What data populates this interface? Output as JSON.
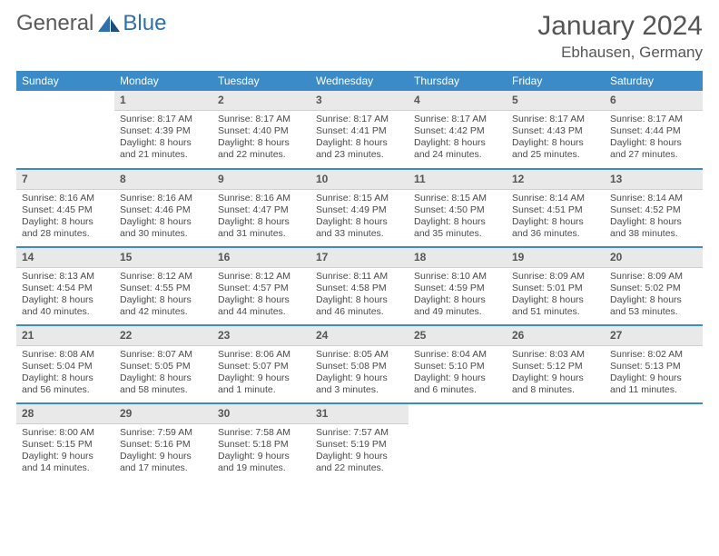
{
  "brand": {
    "part1": "General",
    "part2": "Blue"
  },
  "title": {
    "month": "January 2024",
    "location": "Ebhausen, Germany"
  },
  "colors": {
    "header_bg": "#3b8bc9",
    "dayhead_bg": "#e9e9e9",
    "text": "#4a4a4a"
  },
  "weekdays": [
    "Sunday",
    "Monday",
    "Tuesday",
    "Wednesday",
    "Thursday",
    "Friday",
    "Saturday"
  ],
  "weeks": [
    [
      null,
      {
        "n": "1",
        "sr": "Sunrise: 8:17 AM",
        "ss": "Sunset: 4:39 PM",
        "d1": "Daylight: 8 hours",
        "d2": "and 21 minutes."
      },
      {
        "n": "2",
        "sr": "Sunrise: 8:17 AM",
        "ss": "Sunset: 4:40 PM",
        "d1": "Daylight: 8 hours",
        "d2": "and 22 minutes."
      },
      {
        "n": "3",
        "sr": "Sunrise: 8:17 AM",
        "ss": "Sunset: 4:41 PM",
        "d1": "Daylight: 8 hours",
        "d2": "and 23 minutes."
      },
      {
        "n": "4",
        "sr": "Sunrise: 8:17 AM",
        "ss": "Sunset: 4:42 PM",
        "d1": "Daylight: 8 hours",
        "d2": "and 24 minutes."
      },
      {
        "n": "5",
        "sr": "Sunrise: 8:17 AM",
        "ss": "Sunset: 4:43 PM",
        "d1": "Daylight: 8 hours",
        "d2": "and 25 minutes."
      },
      {
        "n": "6",
        "sr": "Sunrise: 8:17 AM",
        "ss": "Sunset: 4:44 PM",
        "d1": "Daylight: 8 hours",
        "d2": "and 27 minutes."
      }
    ],
    [
      {
        "n": "7",
        "sr": "Sunrise: 8:16 AM",
        "ss": "Sunset: 4:45 PM",
        "d1": "Daylight: 8 hours",
        "d2": "and 28 minutes."
      },
      {
        "n": "8",
        "sr": "Sunrise: 8:16 AM",
        "ss": "Sunset: 4:46 PM",
        "d1": "Daylight: 8 hours",
        "d2": "and 30 minutes."
      },
      {
        "n": "9",
        "sr": "Sunrise: 8:16 AM",
        "ss": "Sunset: 4:47 PM",
        "d1": "Daylight: 8 hours",
        "d2": "and 31 minutes."
      },
      {
        "n": "10",
        "sr": "Sunrise: 8:15 AM",
        "ss": "Sunset: 4:49 PM",
        "d1": "Daylight: 8 hours",
        "d2": "and 33 minutes."
      },
      {
        "n": "11",
        "sr": "Sunrise: 8:15 AM",
        "ss": "Sunset: 4:50 PM",
        "d1": "Daylight: 8 hours",
        "d2": "and 35 minutes."
      },
      {
        "n": "12",
        "sr": "Sunrise: 8:14 AM",
        "ss": "Sunset: 4:51 PM",
        "d1": "Daylight: 8 hours",
        "d2": "and 36 minutes."
      },
      {
        "n": "13",
        "sr": "Sunrise: 8:14 AM",
        "ss": "Sunset: 4:52 PM",
        "d1": "Daylight: 8 hours",
        "d2": "and 38 minutes."
      }
    ],
    [
      {
        "n": "14",
        "sr": "Sunrise: 8:13 AM",
        "ss": "Sunset: 4:54 PM",
        "d1": "Daylight: 8 hours",
        "d2": "and 40 minutes."
      },
      {
        "n": "15",
        "sr": "Sunrise: 8:12 AM",
        "ss": "Sunset: 4:55 PM",
        "d1": "Daylight: 8 hours",
        "d2": "and 42 minutes."
      },
      {
        "n": "16",
        "sr": "Sunrise: 8:12 AM",
        "ss": "Sunset: 4:57 PM",
        "d1": "Daylight: 8 hours",
        "d2": "and 44 minutes."
      },
      {
        "n": "17",
        "sr": "Sunrise: 8:11 AM",
        "ss": "Sunset: 4:58 PM",
        "d1": "Daylight: 8 hours",
        "d2": "and 46 minutes."
      },
      {
        "n": "18",
        "sr": "Sunrise: 8:10 AM",
        "ss": "Sunset: 4:59 PM",
        "d1": "Daylight: 8 hours",
        "d2": "and 49 minutes."
      },
      {
        "n": "19",
        "sr": "Sunrise: 8:09 AM",
        "ss": "Sunset: 5:01 PM",
        "d1": "Daylight: 8 hours",
        "d2": "and 51 minutes."
      },
      {
        "n": "20",
        "sr": "Sunrise: 8:09 AM",
        "ss": "Sunset: 5:02 PM",
        "d1": "Daylight: 8 hours",
        "d2": "and 53 minutes."
      }
    ],
    [
      {
        "n": "21",
        "sr": "Sunrise: 8:08 AM",
        "ss": "Sunset: 5:04 PM",
        "d1": "Daylight: 8 hours",
        "d2": "and 56 minutes."
      },
      {
        "n": "22",
        "sr": "Sunrise: 8:07 AM",
        "ss": "Sunset: 5:05 PM",
        "d1": "Daylight: 8 hours",
        "d2": "and 58 minutes."
      },
      {
        "n": "23",
        "sr": "Sunrise: 8:06 AM",
        "ss": "Sunset: 5:07 PM",
        "d1": "Daylight: 9 hours",
        "d2": "and 1 minute."
      },
      {
        "n": "24",
        "sr": "Sunrise: 8:05 AM",
        "ss": "Sunset: 5:08 PM",
        "d1": "Daylight: 9 hours",
        "d2": "and 3 minutes."
      },
      {
        "n": "25",
        "sr": "Sunrise: 8:04 AM",
        "ss": "Sunset: 5:10 PM",
        "d1": "Daylight: 9 hours",
        "d2": "and 6 minutes."
      },
      {
        "n": "26",
        "sr": "Sunrise: 8:03 AM",
        "ss": "Sunset: 5:12 PM",
        "d1": "Daylight: 9 hours",
        "d2": "and 8 minutes."
      },
      {
        "n": "27",
        "sr": "Sunrise: 8:02 AM",
        "ss": "Sunset: 5:13 PM",
        "d1": "Daylight: 9 hours",
        "d2": "and 11 minutes."
      }
    ],
    [
      {
        "n": "28",
        "sr": "Sunrise: 8:00 AM",
        "ss": "Sunset: 5:15 PM",
        "d1": "Daylight: 9 hours",
        "d2": "and 14 minutes."
      },
      {
        "n": "29",
        "sr": "Sunrise: 7:59 AM",
        "ss": "Sunset: 5:16 PM",
        "d1": "Daylight: 9 hours",
        "d2": "and 17 minutes."
      },
      {
        "n": "30",
        "sr": "Sunrise: 7:58 AM",
        "ss": "Sunset: 5:18 PM",
        "d1": "Daylight: 9 hours",
        "d2": "and 19 minutes."
      },
      {
        "n": "31",
        "sr": "Sunrise: 7:57 AM",
        "ss": "Sunset: 5:19 PM",
        "d1": "Daylight: 9 hours",
        "d2": "and 22 minutes."
      },
      null,
      null,
      null
    ]
  ]
}
